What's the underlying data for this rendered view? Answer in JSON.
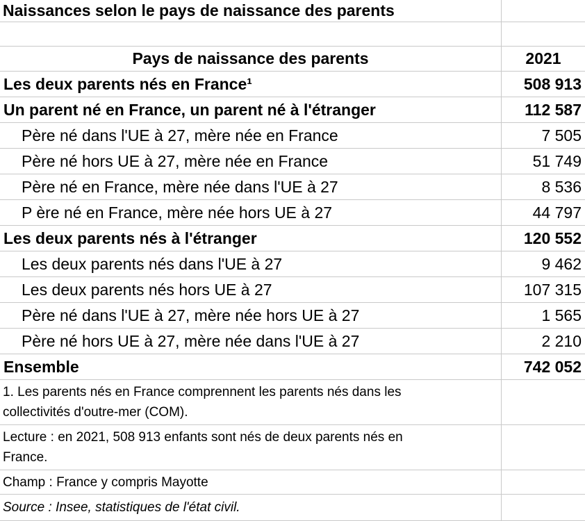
{
  "title": "Naissances selon le pays de naissance des parents",
  "header": {
    "category": "Pays de naissance des parents",
    "year": "2021"
  },
  "rows": [
    {
      "label": "Les deux parents nés en France¹",
      "value": "508 913",
      "bold": true,
      "indent": false
    },
    {
      "label": "Un parent né en France, un parent né à l'étranger",
      "value": "112 587",
      "bold": true,
      "indent": false
    },
    {
      "label": "Père né dans l'UE à 27, mère née en France",
      "value": "7 505",
      "bold": false,
      "indent": true
    },
    {
      "label": "Père né hors UE à 27, mère née en France",
      "value": "51 749",
      "bold": false,
      "indent": true
    },
    {
      "label": "Père né en France, mère née dans l'UE à 27",
      "value": "8 536",
      "bold": false,
      "indent": true
    },
    {
      "label": "P ère né en France, mère née hors UE à 27",
      "value": "44 797",
      "bold": false,
      "indent": true
    },
    {
      "label": "Les deux parents nés à l'étranger",
      "value": "120 552",
      "bold": true,
      "indent": false
    },
    {
      "label": "Les deux parents nés dans l'UE à 27",
      "value": "9 462",
      "bold": false,
      "indent": true
    },
    {
      "label": "Les deux parents nés hors UE à 27",
      "value": "107 315",
      "bold": false,
      "indent": true
    },
    {
      "label": "Père né dans l'UE à 27, mère née hors UE à 27",
      "value": "1 565",
      "bold": false,
      "indent": true
    },
    {
      "label": "Père né hors UE à 27, mère née dans l'UE à 27",
      "value": "2 210",
      "bold": false,
      "indent": true
    },
    {
      "label": "Ensemble",
      "value": "742 052",
      "bold": true,
      "indent": false
    }
  ],
  "footnotes": [
    {
      "text": "1. Les parents nés en France comprennent les parents nés dans les\ncollectivités d'outre-mer (COM).",
      "italic": false
    },
    {
      "text": "Lecture : en 2021, 508 913 enfants sont nés de deux parents nés en\nFrance.",
      "italic": false
    },
    {
      "text": "Champ : France y compris Mayotte",
      "italic": false
    },
    {
      "text": "Source : Insee, statistiques de l'état civil.",
      "italic": true
    }
  ],
  "colors": {
    "gridline": "#c9c9c9",
    "text": "#000000",
    "background": "#ffffff"
  },
  "chart_data": {
    "type": "table",
    "title": "Naissances selon le pays de naissance des parents",
    "columns": [
      "Pays de naissance des parents",
      "2021"
    ],
    "rows": [
      {
        "category": "Les deux parents nés en France",
        "value": 508913,
        "level": 0
      },
      {
        "category": "Un parent né en France, un parent né à l'étranger",
        "value": 112587,
        "level": 0
      },
      {
        "category": "Père né dans l'UE à 27, mère née en France",
        "value": 7505,
        "level": 1
      },
      {
        "category": "Père né hors UE à 27, mère née en France",
        "value": 51749,
        "level": 1
      },
      {
        "category": "Père né en France, mère née dans l'UE à 27",
        "value": 8536,
        "level": 1
      },
      {
        "category": "Père né en France, mère née hors UE à 27",
        "value": 44797,
        "level": 1
      },
      {
        "category": "Les deux parents nés à l'étranger",
        "value": 120552,
        "level": 0
      },
      {
        "category": "Les deux parents nés dans l'UE à 27",
        "value": 9462,
        "level": 1
      },
      {
        "category": "Les deux parents nés hors UE à 27",
        "value": 107315,
        "level": 1
      },
      {
        "category": "Père né dans l'UE à 27, mère née hors UE à 27",
        "value": 1565,
        "level": 1
      },
      {
        "category": "Père né hors UE à 27, mère née dans l'UE à 27",
        "value": 2210,
        "level": 1
      },
      {
        "category": "Ensemble",
        "value": 742052,
        "level": 0
      }
    ],
    "notes": [
      "1. Les parents nés en France comprennent les parents nés dans les collectivités d'outre-mer (COM).",
      "Lecture : en 2021, 508 913 enfants sont nés de deux parents nés en France.",
      "Champ : France y compris Mayotte",
      "Source : Insee, statistiques de l'état civil."
    ]
  }
}
